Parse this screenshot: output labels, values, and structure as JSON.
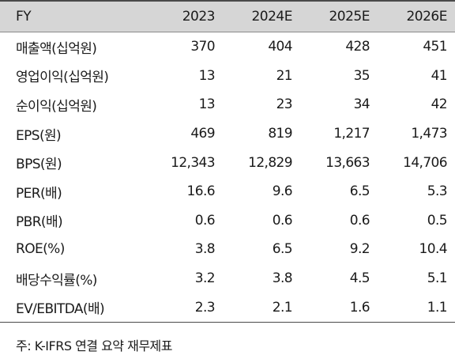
{
  "header": {
    "label": "FY",
    "years": [
      "2023",
      "2024E",
      "2025E",
      "2026E"
    ]
  },
  "rows": [
    {
      "label": "매출액(십억원)",
      "values": [
        "370",
        "404",
        "428",
        "451"
      ]
    },
    {
      "label": "영업이익(십억원)",
      "values": [
        "13",
        "21",
        "35",
        "41"
      ]
    },
    {
      "label": "순이익(십억원)",
      "values": [
        "13",
        "23",
        "34",
        "42"
      ]
    },
    {
      "label": "EPS(원)",
      "values": [
        "469",
        "819",
        "1,217",
        "1,473"
      ]
    },
    {
      "label": "BPS(원)",
      "values": [
        "12,343",
        "12,829",
        "13,663",
        "14,706"
      ]
    },
    {
      "label": "PER(배)",
      "values": [
        "16.6",
        "9.6",
        "6.5",
        "5.3"
      ]
    },
    {
      "label": "PBR(배)",
      "values": [
        "0.6",
        "0.6",
        "0.6",
        "0.5"
      ]
    },
    {
      "label": "ROE(%)",
      "values": [
        "3.8",
        "6.5",
        "9.2",
        "10.4"
      ]
    },
    {
      "label": "배당수익률(%)",
      "values": [
        "3.2",
        "3.8",
        "4.5",
        "5.1"
      ]
    },
    {
      "label": "EV/EBITDA(배)",
      "values": [
        "2.3",
        "2.1",
        "1.6",
        "1.1"
      ]
    }
  ],
  "footnote": "주: K-IFRS 연결 요약 재무제표"
}
